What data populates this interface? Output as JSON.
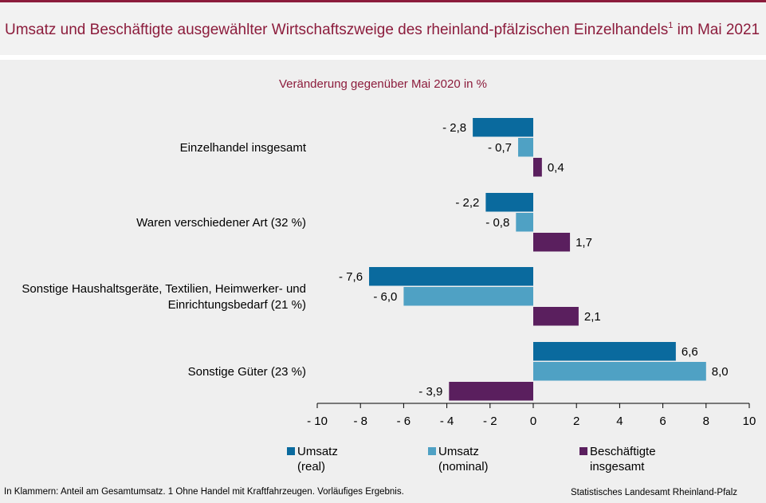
{
  "header": {
    "title": "Umsatz und Beschäftigte ausgewählter Wirtschaftszweige des rheinland-pfälzischen Einzelhandels",
    "title_sup": "1",
    "title_suffix": " im Mai 2021"
  },
  "chart_data": {
    "type": "bar",
    "orientation": "horizontal",
    "subtitle": "Veränderung gegenüber Mai 2020 in %",
    "categories": [
      "Einzelhandel insgesamt",
      "Waren verschiedener Art (32 %)",
      "Sonstige Haushaltsgeräte, Textilien, Heimwerker- und Einrichtungsbedarf (21 %)",
      "Sonstige Güter (23 %)"
    ],
    "category_lines": [
      [
        "Einzelhandel insgesamt"
      ],
      [
        "Waren verschiedener Art (32 %)"
      ],
      [
        "Sonstige Haushaltsgeräte, Textilien, Heimwerker- und",
        "Einrichtungsbedarf (21 %)"
      ],
      [
        "Sonstige Güter (23 %)"
      ]
    ],
    "series": [
      {
        "name": "Umsatz (real)",
        "legend_lines": [
          "Umsatz",
          "(real)"
        ],
        "color": "#0a6a9e",
        "values": [
          -2.8,
          -2.2,
          -7.6,
          6.6
        ],
        "labels": [
          "- 2,8",
          "- 2,2",
          "- 7,6",
          "6,6"
        ]
      },
      {
        "name": "Umsatz (nominal)",
        "legend_lines": [
          "Umsatz",
          "(nominal)"
        ],
        "color": "#4fa1c4",
        "values": [
          -0.7,
          -0.8,
          -6.0,
          8.0
        ],
        "labels": [
          "- 0,7",
          "- 0,8",
          "- 6,0",
          "8,0"
        ]
      },
      {
        "name": "Beschäftigte insgesamt",
        "legend_lines": [
          "Beschäftigte",
          "insgesamt"
        ],
        "color": "#5a1f5e",
        "values": [
          0.4,
          1.7,
          2.1,
          -3.9
        ],
        "labels": [
          "0,4",
          "1,7",
          "2,1",
          "- 3,9"
        ]
      }
    ],
    "xlim": [
      -10,
      10
    ],
    "xticks": [
      -10,
      -8,
      -6,
      -4,
      -2,
      0,
      2,
      4,
      6,
      8,
      10
    ],
    "xtick_labels": [
      "- 10",
      "- 8",
      "- 6",
      "- 4",
      "- 2",
      "0",
      "2",
      "4",
      "6",
      "8",
      "10"
    ],
    "legend_position": "bottom"
  },
  "footer": {
    "note": "In Klammern: Anteil am Gesamtumsatz. 1 Ohne Handel mit Kraftfahrzeugen. Vorläufiges Ergebnis.",
    "source": "Statistisches Landesamt Rheinland-Pfalz"
  }
}
